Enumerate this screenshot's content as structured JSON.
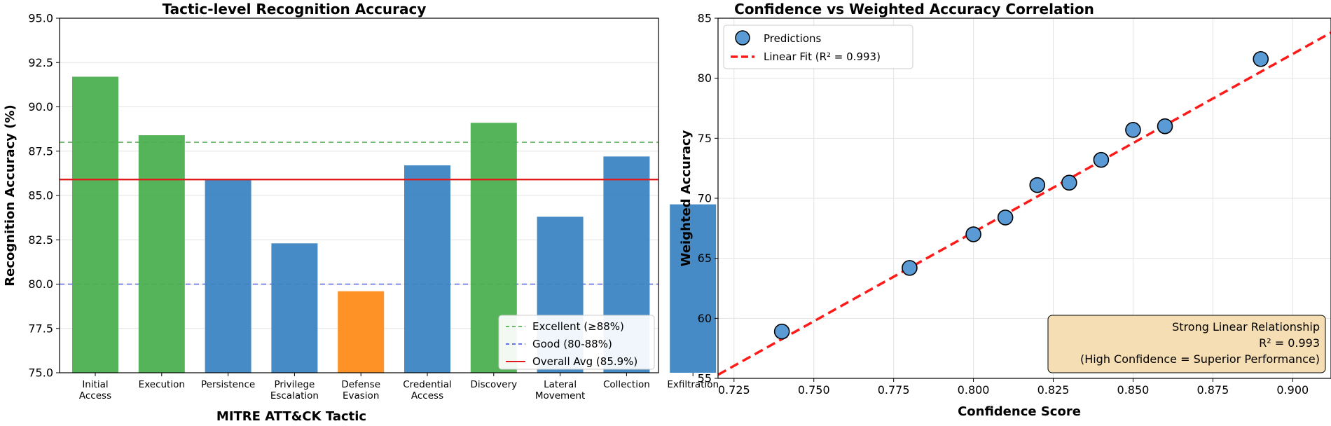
{
  "colors": {
    "excellent": "#4caf50",
    "good": "#3c85c2",
    "below": "#ff8c1a",
    "avg_line": "#e31a1c",
    "excellent_line": "#3aa33a",
    "good_line": "#3846e8",
    "marker": "#5b9bd5",
    "fit_line": "#ff1a1a",
    "annot_bg": "#f5deb3"
  },
  "chart_data": [
    {
      "type": "bar",
      "title": "Tactic-level Recognition Accuracy",
      "xlabel": "MITRE ATT&CK Tactic",
      "ylabel": "Recognition Accuracy (%)",
      "ylim": [
        75.0,
        95.0
      ],
      "yticks": [
        "75.0",
        "77.5",
        "80.0",
        "82.5",
        "85.0",
        "87.5",
        "90.0",
        "92.5",
        "95.0"
      ],
      "grid": true,
      "legend_position": "bottom-right",
      "categories": [
        [
          "Initial",
          "Access"
        ],
        [
          "Execution"
        ],
        [
          "Persistence"
        ],
        [
          "Privilege",
          "Escalation"
        ],
        [
          "Defense",
          "Evasion"
        ],
        [
          "Credential",
          "Access"
        ],
        [
          "Discovery"
        ],
        [
          "Lateral",
          "Movement"
        ],
        [
          "Collection"
        ],
        [
          "Exfiltration"
        ]
      ],
      "values": [
        91.7,
        88.4,
        85.9,
        82.3,
        79.6,
        86.7,
        89.1,
        83.8,
        87.2,
        84.5
      ],
      "levels": [
        "excellent",
        "excellent",
        "good",
        "good",
        "below",
        "good",
        "excellent",
        "good",
        "good",
        "good"
      ],
      "reference_lines": [
        {
          "name": "Excellent (≥88%)",
          "value": 88,
          "style": "dashed",
          "color_key": "excellent_line"
        },
        {
          "name": "Good (80-88%)",
          "value": 80,
          "style": "dashed",
          "color_key": "good_line"
        },
        {
          "name": "Overall Avg (85.9%)",
          "value": 85.9,
          "style": "solid",
          "color_key": "avg_line"
        }
      ]
    },
    {
      "type": "scatter",
      "title": "Confidence vs Weighted Accuracy Correlation",
      "xlabel": "Confidence Score",
      "ylabel": "Weighted Accuracy",
      "xlim": [
        0.72,
        0.912
      ],
      "ylim": [
        55,
        85
      ],
      "xticks": [
        "0.725",
        "0.750",
        "0.775",
        "0.800",
        "0.825",
        "0.850",
        "0.875",
        "0.900"
      ],
      "yticks": [
        "55",
        "60",
        "65",
        "70",
        "75",
        "80",
        "85"
      ],
      "grid": true,
      "legend_position": "top-left",
      "series": [
        {
          "name": "Predictions",
          "x": [
            0.74,
            0.78,
            0.8,
            0.81,
            0.82,
            0.83,
            0.84,
            0.85,
            0.86,
            0.89
          ],
          "y": [
            58.9,
            64.2,
            67.0,
            68.4,
            71.1,
            71.3,
            73.2,
            75.7,
            76.0,
            81.6
          ]
        }
      ],
      "fit": {
        "name": "Linear Fit (R² = 0.993)",
        "x": [
          0.72,
          0.912
        ],
        "y": [
          55.3,
          83.8
        ]
      },
      "annotation": [
        "Strong Linear Relationship",
        "R² = 0.993",
        "(High Confidence = Superior Performance)"
      ],
      "annotation_position": "bottom-right"
    }
  ]
}
